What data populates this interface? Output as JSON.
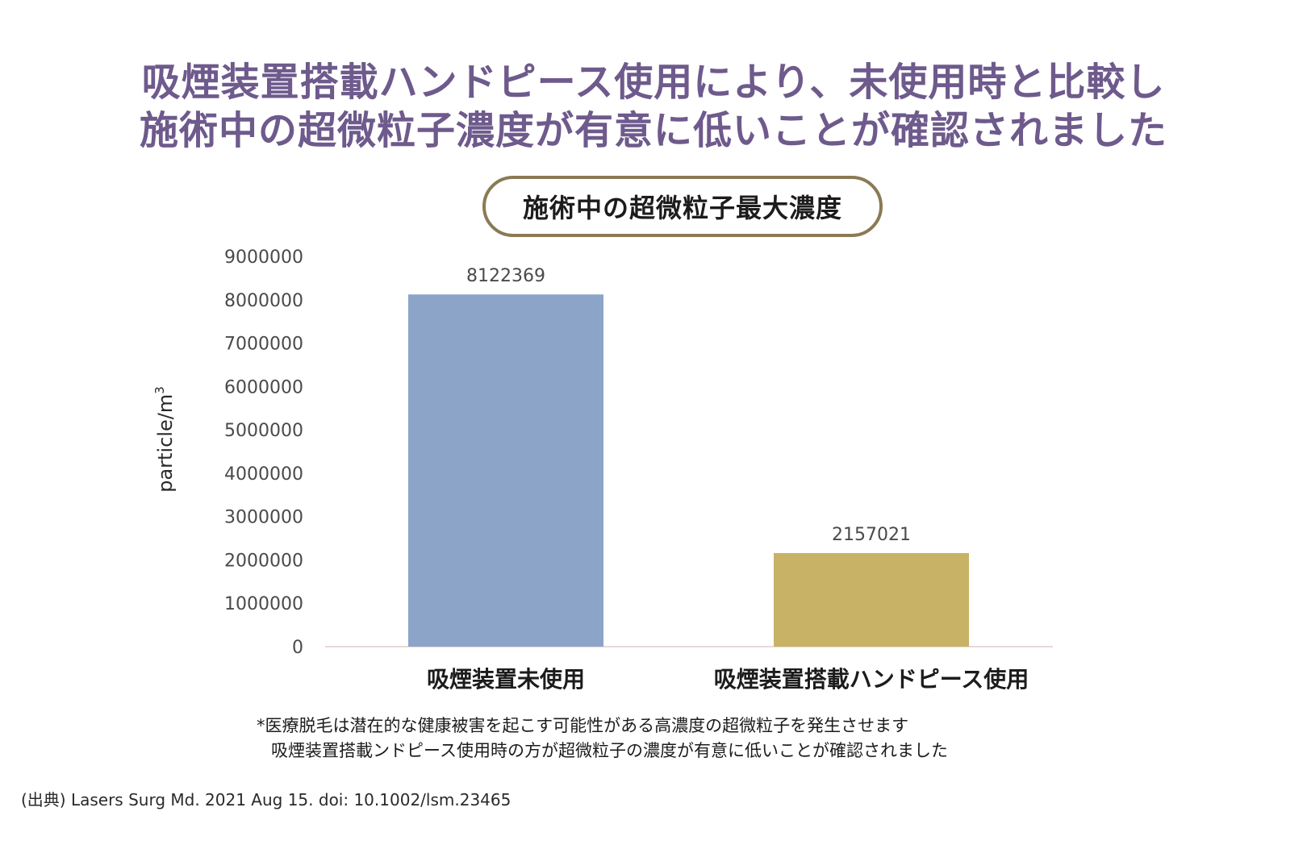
{
  "headline": {
    "line1": "吸煙装置搭載ハンドピース使用により、未使用時と比較し",
    "line2": "施術中の超微粒子濃度が有意に低いことが確認されました"
  },
  "chart_data": {
    "type": "bar",
    "title": "施術中の超微粒子最大濃度",
    "ylabel": "particle/m",
    "ylabel_superscript": "3",
    "xlabel": "",
    "ylim": [
      0,
      9000000
    ],
    "yticks": [
      "0",
      "1000000",
      "2000000",
      "3000000",
      "4000000",
      "5000000",
      "6000000",
      "7000000",
      "8000000",
      "9000000"
    ],
    "categories": [
      "吸煙装置未使用",
      "吸煙装置搭載ハンドピース使用"
    ],
    "values": [
      8122369,
      2157021
    ],
    "data_labels": [
      "8122369",
      "2157021"
    ],
    "bar_colors": [
      "#8ba4c8",
      "#c8b266"
    ],
    "grid": false
  },
  "notes": {
    "line1": "*医療脱毛は潜在的な健康被害を起こす可能性がある高濃度の超微粒子を発生させます",
    "line2": "吸煙装置搭載ンドピース使用時の方が超微粒子の濃度が有意に低いことが確認されました"
  },
  "source": "(出典) Lasers Surg Md. 2021 Aug 15. doi: 10.1002/lsm.23465",
  "colors": {
    "headline": "#6e5a8c",
    "title_border": "#8a7a55",
    "axis_line": "#e8d8dc"
  }
}
